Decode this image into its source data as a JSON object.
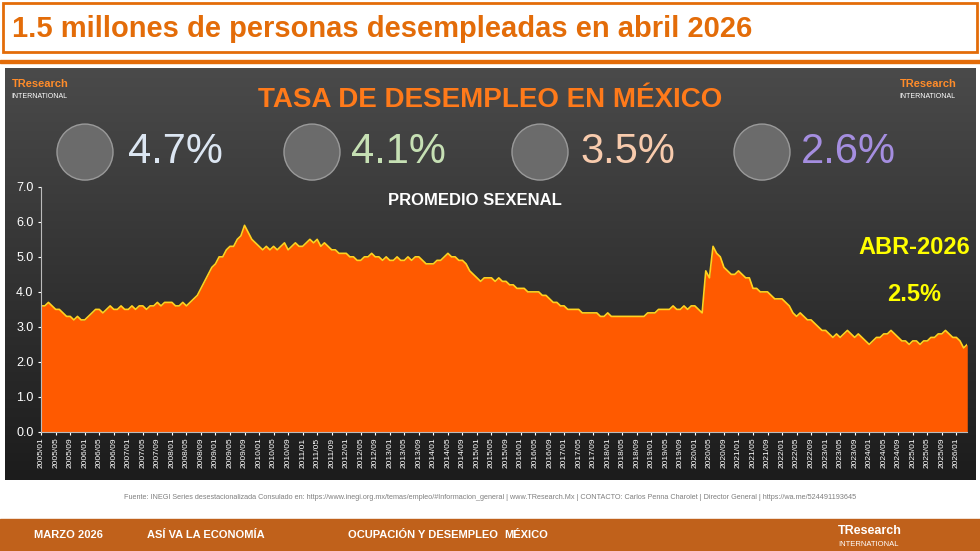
{
  "header": {
    "title": "1.5 millones de personas desempleadas en abril 2026"
  },
  "logo": {
    "name": "TResearch",
    "subname": "INTERNATIONAL"
  },
  "chart_data": {
    "type": "area",
    "title": "TASA DE DESEMPLEO EN MÉXICO",
    "sexenal_averages": {
      "title": "PROMEDIO SEXENAL",
      "labels": [
        "4.7%",
        "4.1%",
        "3.5%",
        "2.6%"
      ],
      "colors": [
        "#dce6f2",
        "#c6e0b4",
        "#f8cbad",
        "#a58ee0"
      ]
    },
    "categories": [
      "2005/01",
      null,
      null,
      null,
      "2005/05",
      null,
      null,
      null,
      "2005/09",
      null,
      null,
      null,
      "2006/01",
      null,
      null,
      null,
      "2006/05",
      null,
      null,
      null,
      "2006/09",
      null,
      null,
      null,
      "2007/01",
      null,
      null,
      null,
      "2007/05",
      null,
      null,
      null,
      "2007/09",
      null,
      null,
      null,
      "2008/01",
      null,
      null,
      null,
      "2008/05",
      null,
      null,
      null,
      "2008/09",
      null,
      null,
      null,
      "2009/01",
      null,
      null,
      null,
      "2009/05",
      null,
      null,
      null,
      "2009/09",
      null,
      null,
      null,
      "2010/01",
      null,
      null,
      null,
      "2010/05",
      null,
      null,
      null,
      "2010/09",
      null,
      null,
      null,
      "2011/01",
      null,
      null,
      null,
      "2011/05",
      null,
      null,
      null,
      "2011/09",
      null,
      null,
      null,
      "2012/01",
      null,
      null,
      null,
      "2012/05",
      null,
      null,
      null,
      "2012/09",
      null,
      null,
      null,
      "2013/01",
      null,
      null,
      null,
      "2013/05",
      null,
      null,
      null,
      "2013/09",
      null,
      null,
      null,
      "2014/01",
      null,
      null,
      null,
      "2014/05",
      null,
      null,
      null,
      "2014/09",
      null,
      null,
      null,
      "2015/01",
      null,
      null,
      null,
      "2015/05",
      null,
      null,
      null,
      "2015/09",
      null,
      null,
      null,
      "2016/01",
      null,
      null,
      null,
      "2016/05",
      null,
      null,
      null,
      "2016/09",
      null,
      null,
      null,
      "2017/01",
      null,
      null,
      null,
      "2017/05",
      null,
      null,
      null,
      "2017/09",
      null,
      null,
      null,
      "2018/01",
      null,
      null,
      null,
      "2018/05",
      null,
      null,
      null,
      "2018/09",
      null,
      null,
      null,
      "2019/01",
      null,
      null,
      null,
      "2019/05",
      null,
      null,
      null,
      "2019/09",
      null,
      null,
      null,
      "2020/01",
      null,
      null,
      null,
      "2020/05",
      null,
      null,
      null,
      "2020/09",
      null,
      null,
      null,
      "2021/01",
      null,
      null,
      null,
      "2021/05",
      null,
      null,
      null,
      "2021/09",
      null,
      null,
      null,
      "2022/01",
      null,
      null,
      null,
      "2022/05",
      null,
      null,
      null,
      "2022/09",
      null,
      null,
      null,
      "2023/01",
      null,
      null,
      null,
      "2023/05",
      null,
      null,
      null,
      "2023/09",
      null,
      null,
      null,
      "2024/01",
      null,
      null,
      null,
      "2024/05",
      null,
      null,
      null,
      "2024/09",
      null,
      null,
      null,
      "2025/01",
      null,
      null,
      null,
      "2025/05",
      null,
      null,
      null,
      "2025/09",
      null,
      null,
      null,
      "2026/01",
      null,
      null,
      null
    ],
    "values": [
      3.6,
      3.6,
      3.7,
      3.6,
      3.5,
      3.5,
      3.4,
      3.3,
      3.3,
      3.2,
      3.3,
      3.2,
      3.2,
      3.3,
      3.4,
      3.5,
      3.5,
      3.4,
      3.5,
      3.6,
      3.5,
      3.5,
      3.6,
      3.5,
      3.5,
      3.6,
      3.5,
      3.6,
      3.6,
      3.5,
      3.6,
      3.6,
      3.7,
      3.6,
      3.7,
      3.7,
      3.7,
      3.6,
      3.6,
      3.7,
      3.6,
      3.7,
      3.8,
      3.9,
      4.1,
      4.3,
      4.5,
      4.7,
      4.8,
      5.0,
      5.0,
      5.2,
      5.3,
      5.3,
      5.5,
      5.6,
      5.9,
      5.7,
      5.5,
      5.4,
      5.3,
      5.2,
      5.3,
      5.2,
      5.3,
      5.2,
      5.3,
      5.4,
      5.2,
      5.3,
      5.4,
      5.3,
      5.3,
      5.4,
      5.5,
      5.4,
      5.5,
      5.3,
      5.4,
      5.3,
      5.2,
      5.2,
      5.1,
      5.1,
      5.1,
      5.0,
      5.0,
      4.9,
      4.9,
      5.0,
      5.0,
      5.1,
      5.0,
      5.0,
      4.9,
      5.0,
      4.9,
      4.9,
      5.0,
      4.9,
      4.9,
      5.0,
      4.9,
      5.0,
      5.0,
      4.9,
      4.8,
      4.8,
      4.8,
      4.9,
      4.9,
      5.0,
      5.1,
      5.0,
      5.0,
      4.9,
      4.9,
      4.8,
      4.6,
      4.5,
      4.4,
      4.3,
      4.4,
      4.4,
      4.4,
      4.3,
      4.4,
      4.3,
      4.3,
      4.2,
      4.2,
      4.1,
      4.1,
      4.1,
      4.0,
      4.0,
      4.0,
      4.0,
      3.9,
      3.9,
      3.8,
      3.7,
      3.7,
      3.6,
      3.6,
      3.5,
      3.5,
      3.5,
      3.5,
      3.4,
      3.4,
      3.4,
      3.4,
      3.4,
      3.3,
      3.3,
      3.4,
      3.3,
      3.3,
      3.3,
      3.3,
      3.3,
      3.3,
      3.3,
      3.3,
      3.3,
      3.3,
      3.4,
      3.4,
      3.4,
      3.5,
      3.5,
      3.5,
      3.5,
      3.6,
      3.5,
      3.5,
      3.6,
      3.5,
      3.6,
      3.6,
      3.5,
      3.4,
      4.6,
      4.4,
      5.3,
      5.1,
      5.0,
      4.7,
      4.6,
      4.5,
      4.5,
      4.6,
      4.5,
      4.4,
      4.4,
      4.1,
      4.1,
      4.0,
      4.0,
      4.0,
      3.9,
      3.8,
      3.8,
      3.8,
      3.7,
      3.6,
      3.4,
      3.3,
      3.4,
      3.3,
      3.2,
      3.2,
      3.1,
      3.0,
      2.9,
      2.9,
      2.8,
      2.7,
      2.8,
      2.7,
      2.8,
      2.9,
      2.8,
      2.7,
      2.8,
      2.7,
      2.6,
      2.5,
      2.6,
      2.7,
      2.7,
      2.8,
      2.8,
      2.9,
      2.8,
      2.7,
      2.6,
      2.6,
      2.5,
      2.6,
      2.6,
      2.5,
      2.6,
      2.6,
      2.7,
      2.7,
      2.8,
      2.8,
      2.9,
      2.8,
      2.7,
      2.7,
      2.6,
      2.4,
      2.5
    ],
    "color": "#ff5a00",
    "ylim": [
      0,
      7
    ],
    "yticks": [
      {
        "value": 0,
        "label": "0.0"
      },
      {
        "value": 1,
        "label": "1.0"
      },
      {
        "value": 2,
        "label": "2.0"
      },
      {
        "value": 3,
        "label": "3.0"
      },
      {
        "value": 4,
        "label": "4.0"
      },
      {
        "value": 5,
        "label": "5.0"
      },
      {
        "value": 6,
        "label": "6.0"
      },
      {
        "value": 7,
        "label": "7.0"
      }
    ],
    "grid": false,
    "annotation": {
      "text": "ABR-2026",
      "value": 2.5,
      "value_label": "2.5%"
    }
  },
  "footer": {
    "source": "Fuente: INEGI Series desestacionalizada Consulado en: https://www.inegi.org.mx/temas/empleo/#Informacion_general | www.TResearch.Mx | CONTACTO: Carlos Penna Charolet | Director General | https://wa.me/524491193645",
    "items": [
      "MARZO 2026",
      "ASÍ VA LA ECONOMÍA",
      "OCUPACIÓN Y DESEMPLEO",
      "MÉXICO"
    ]
  }
}
